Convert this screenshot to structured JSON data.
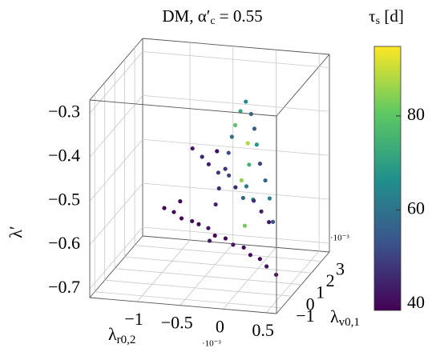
{
  "chart_data": {
    "type": "scatter3d",
    "title": {
      "text": "DM, α",
      "prime": "′",
      "sub": "c",
      "rest": " = 0.55"
    },
    "xlabel": {
      "text": "λ",
      "sub": "r0,2"
    },
    "ylabel": {
      "text": "λ",
      "sub": "v0,1"
    },
    "zlabel": "λ′",
    "x_multiplier": "·10⁻³",
    "y_multiplier": "·10⁻³",
    "colorbar_label": {
      "text": "τ",
      "sub": "s",
      "rest": " [d]"
    },
    "xlim": [
      -1.55,
      0.62
    ],
    "ylim": [
      -1.5,
      3.8
    ],
    "zlim": [
      -0.72,
      -0.27
    ],
    "clim": [
      38.6,
      94.8
    ],
    "xticks": [
      {
        "value": -1,
        "label": "−1"
      },
      {
        "value": -0.5,
        "label": "−0.5"
      },
      0,
      0.5
    ],
    "yticks": [
      {
        "value": -1,
        "label": "−1"
      },
      0,
      1,
      2,
      3
    ],
    "zticks": [
      {
        "value": -0.7,
        "label": "−0.7"
      },
      {
        "value": -0.6,
        "label": "−0.6"
      },
      {
        "value": -0.5,
        "label": "−0.5"
      },
      {
        "value": -0.4,
        "label": "−0.4"
      },
      {
        "value": -0.3,
        "label": "−0.3"
      }
    ],
    "cticks": [
      40,
      60,
      80
    ],
    "grid": true,
    "colormap": "viridis",
    "points": {
      "x": [
        -0.8,
        -0.7,
        -0.6,
        -0.5,
        -0.4,
        -0.3,
        -0.2,
        -0.1,
        0,
        0.1,
        0.2,
        0.3,
        0.4,
        0.5,
        -0.65,
        -0.25,
        -0.6,
        -0.5,
        -0.4,
        -0.3,
        -0.2,
        -0.1,
        0,
        0.1,
        0.2,
        0.3,
        -0.35,
        0.05,
        -0.05,
        -0.1,
        0,
        -0.15,
        0.05,
        -0.2,
        0.1,
        -0.05,
        -0.25,
        0.15,
        0,
        -0.3,
        0.2,
        -0.1,
        -0.35,
        0.25,
        0,
        -0.4,
        0.3,
        -0.05
      ],
      "y": [
        -0.5,
        -0.4,
        -0.5,
        -0.3,
        -0.5,
        -0.4,
        -0.6,
        -0.4,
        -0.5,
        -0.3,
        -0.5,
        -0.4,
        -0.6,
        -0.5,
        -0.2,
        -0.7,
        0.6,
        0.7,
        0.5,
        0.6,
        0.8,
        0.6,
        0.5,
        0.7,
        0.6,
        0.5,
        0.9,
        0.4,
        1.2,
        1.1,
        1.3,
        1.0,
        1.2,
        1.1,
        1.0,
        1.4,
        1.2,
        0.9,
        1.1,
        1.3,
        1.0,
        1.2,
        1.1,
        1.0,
        1.5,
        1.2,
        0.9,
        1.1
      ],
      "z": [
        -0.53,
        -0.54,
        -0.55,
        -0.56,
        -0.56,
        -0.57,
        -0.58,
        -0.59,
        -0.6,
        -0.61,
        -0.62,
        -0.63,
        -0.64,
        -0.66,
        -0.52,
        -0.59,
        -0.42,
        -0.44,
        -0.45,
        -0.47,
        -0.48,
        -0.5,
        -0.52,
        -0.53,
        -0.55,
        -0.57,
        -0.43,
        -0.49,
        -0.32,
        -0.34,
        -0.35,
        -0.37,
        -0.38,
        -0.4,
        -0.41,
        -0.42,
        -0.44,
        -0.45,
        -0.46,
        -0.48,
        -0.49,
        -0.5,
        -0.52,
        -0.53,
        -0.55,
        -0.56,
        -0.58,
        -0.6
      ],
      "c": [
        38,
        40,
        39,
        41,
        40,
        42,
        39,
        40,
        43,
        41,
        40,
        39,
        42,
        41,
        40,
        44,
        42,
        45,
        44,
        48,
        50,
        46,
        55,
        47,
        44,
        43,
        41,
        62,
        65,
        72,
        58,
        80,
        55,
        60,
        68,
        88,
        52,
        50,
        75,
        48,
        57,
        85,
        46,
        63,
        70,
        45,
        53,
        82
      ]
    }
  }
}
